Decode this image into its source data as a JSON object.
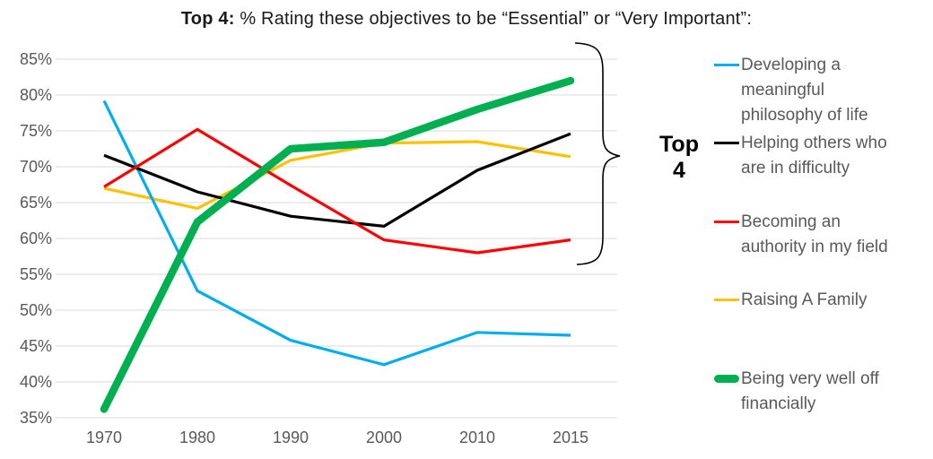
{
  "title": {
    "bold": "Top 4:",
    "rest": " % Rating these objectives to be “Essential” or “Very Important”:"
  },
  "annotation": {
    "lines": [
      "Top",
      "4"
    ]
  },
  "colors": {
    "gridline": "#d9d9d9",
    "axis_text": "#595959",
    "legend_text": "#595959",
    "brace": "#000000"
  },
  "chart_data": {
    "type": "line",
    "title": "Top 4: % Rating these objectives to be “Essential” or “Very Important”:",
    "categories": [
      "1970",
      "1980",
      "1990",
      "2000",
      "2010",
      "2015"
    ],
    "ytick_values": [
      85,
      80,
      75,
      70,
      65,
      60,
      55,
      50,
      45,
      40,
      35
    ],
    "ytick_suffix": "%",
    "ylim": [
      35,
      85
    ],
    "grid": "horizontal",
    "legend_position": "right",
    "series": [
      {
        "name": "Developing a meaningful philosophy of life",
        "legend_lines": [
          "Developing a",
          "meaningful",
          "philosophy of life"
        ],
        "color": "#00AEEF",
        "stroke_width": 3.2,
        "values": [
          79.2,
          52.7,
          45.8,
          42.4,
          46.9,
          46.5
        ]
      },
      {
        "name": "Helping others who are in difficulty",
        "legend_lines": [
          "Helping others who",
          "are in difficulty"
        ],
        "color": "#000000",
        "stroke_width": 3.2,
        "values": [
          71.6,
          66.5,
          63.1,
          61.7,
          69.5,
          74.6
        ]
      },
      {
        "name": "Becoming an authority in my field",
        "legend_lines": [
          "Becoming an",
          "authority in my field"
        ],
        "color": "#FF0000",
        "stroke_width": 3.2,
        "values": [
          67.2,
          75.2,
          67.4,
          59.8,
          58.0,
          59.8
        ]
      },
      {
        "name": "Raising A Family",
        "legend_lines": [
          "Raising A Family"
        ],
        "color": "#FFC000",
        "stroke_width": 3.2,
        "values": [
          67.0,
          64.2,
          70.9,
          73.3,
          73.5,
          71.4
        ]
      },
      {
        "name": "Being very well off financially",
        "legend_lines": [
          "Being very well off",
          "financially"
        ],
        "color": "#00B050",
        "stroke_width": 8.5,
        "values": [
          36.2,
          62.3,
          72.5,
          73.4,
          78.0,
          82.0
        ]
      }
    ]
  }
}
